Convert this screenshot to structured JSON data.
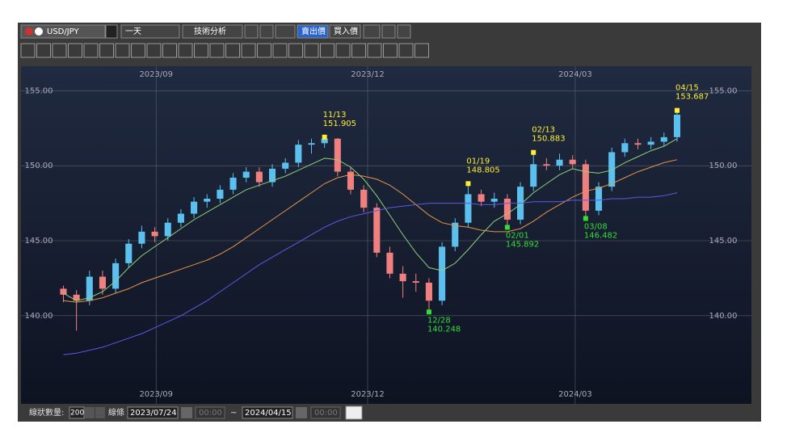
{
  "ui": {
    "symbol": "USD/JPY",
    "period": "一天",
    "analysis": "技術分析",
    "sell": "賣出價",
    "buy": "買入價",
    "count_label": "線狀數量:",
    "count": "200",
    "line_label": "線條",
    "from_date": "2023/07/24",
    "from_time": "00:00",
    "tilde": "~",
    "to_date": "2024/04/15",
    "to_time": "00:00"
  },
  "chart_data": {
    "type": "candlestick",
    "categories": [
      null,
      null,
      null,
      null,
      null,
      null,
      null,
      null,
      null,
      null,
      null,
      null,
      null,
      null,
      null,
      null,
      null,
      null,
      null,
      null,
      null,
      null,
      null,
      null,
      null,
      null,
      null,
      null,
      null,
      null,
      null,
      null,
      null,
      null,
      null,
      null,
      null,
      null,
      null,
      null,
      null,
      null,
      null,
      null,
      null,
      null,
      null,
      null
    ],
    "open": [
      141.8,
      141.4,
      141.0,
      142.6,
      141.8,
      143.5,
      144.8,
      145.6,
      145.3,
      146.2,
      146.8,
      147.6,
      147.8,
      148.4,
      149.2,
      149.6,
      148.9,
      149.8,
      150.2,
      151.4,
      151.5,
      151.8,
      149.6,
      148.4,
      147.2,
      144.2,
      142.8,
      142.3,
      142.2,
      141.0,
      144.6,
      146.2,
      148.1,
      147.6,
      147.8,
      146.4,
      148.6,
      150.1,
      150.0,
      150.4,
      150.1,
      147.0,
      148.6,
      150.9,
      151.5,
      151.4,
      151.6,
      151.9
    ],
    "high": [
      142.0,
      141.7,
      143.0,
      143.0,
      143.8,
      145.1,
      146.0,
      145.9,
      146.5,
      147.1,
      147.9,
      148.1,
      148.7,
      149.5,
      149.9,
      149.9,
      150.1,
      150.5,
      151.7,
      151.8,
      151.905,
      151.85,
      149.9,
      148.7,
      147.5,
      144.6,
      143.3,
      142.8,
      142.5,
      144.9,
      146.5,
      148.805,
      148.4,
      148.2,
      148.1,
      148.9,
      150.883,
      150.5,
      150.8,
      150.7,
      150.4,
      148.9,
      151.2,
      151.8,
      151.8,
      151.9,
      152.2,
      153.687
    ],
    "low": [
      140.9,
      139.0,
      140.7,
      141.4,
      141.5,
      143.2,
      144.5,
      144.9,
      145.0,
      145.9,
      146.5,
      147.2,
      147.5,
      148.1,
      148.9,
      148.6,
      148.6,
      149.5,
      149.9,
      150.8,
      151.2,
      149.3,
      148.1,
      146.9,
      143.9,
      142.5,
      141.2,
      141.6,
      140.248,
      140.7,
      144.3,
      145.9,
      147.3,
      147.2,
      145.892,
      146.1,
      148.3,
      149.7,
      149.7,
      149.8,
      146.482,
      146.7,
      148.3,
      150.6,
      151.1,
      151.1,
      151.3,
      151.6
    ],
    "close": [
      141.4,
      141.0,
      142.6,
      141.8,
      143.5,
      144.8,
      145.6,
      145.3,
      146.2,
      146.8,
      147.6,
      147.8,
      148.4,
      149.2,
      149.6,
      148.9,
      149.8,
      150.2,
      151.4,
      151.5,
      151.8,
      149.6,
      148.4,
      147.2,
      144.2,
      142.8,
      142.3,
      142.2,
      141.0,
      144.6,
      146.2,
      148.1,
      147.6,
      147.8,
      146.4,
      148.6,
      150.1,
      150.0,
      150.4,
      150.1,
      147.0,
      148.6,
      150.9,
      151.5,
      151.4,
      151.6,
      151.9,
      153.4
    ],
    "up_color": "#5cc0ee",
    "down_color": "#f08080",
    "series": [
      {
        "color": "#8fd17a",
        "values": [
          141.5,
          141.0,
          141.2,
          141.6,
          142.3,
          143.2,
          144.0,
          144.6,
          145.2,
          145.8,
          146.4,
          146.9,
          147.4,
          147.9,
          148.4,
          148.7,
          149.0,
          149.3,
          149.7,
          150.1,
          150.5,
          150.4,
          149.9,
          149.1,
          148.0,
          146.7,
          145.4,
          144.2,
          143.2,
          143.0,
          143.5,
          144.4,
          145.4,
          146.3,
          146.8,
          147.4,
          148.2,
          148.8,
          149.4,
          149.8,
          149.6,
          149.5,
          149.7,
          150.2,
          150.6,
          151.0,
          151.3,
          151.8
        ]
      },
      {
        "color": "#e8944a",
        "values": [
          141.0,
          140.9,
          141.0,
          141.2,
          141.5,
          141.8,
          142.2,
          142.5,
          142.8,
          143.1,
          143.4,
          143.7,
          144.1,
          144.6,
          145.2,
          145.8,
          146.4,
          147.0,
          147.6,
          148.2,
          148.8,
          149.2,
          149.4,
          149.3,
          149.1,
          148.7,
          148.1,
          147.4,
          146.7,
          146.2,
          146.0,
          145.9,
          145.7,
          145.6,
          145.6,
          145.8,
          146.3,
          146.9,
          147.4,
          147.9,
          148.3,
          148.5,
          148.8,
          149.2,
          149.6,
          149.9,
          150.2,
          150.4
        ]
      },
      {
        "color": "#5a5ae6",
        "values": [
          137.4,
          137.5,
          137.7,
          137.9,
          138.2,
          138.5,
          138.8,
          139.2,
          139.6,
          140.0,
          140.5,
          141.0,
          141.6,
          142.2,
          142.8,
          143.4,
          143.9,
          144.4,
          144.9,
          145.4,
          145.9,
          146.3,
          146.6,
          146.8,
          147.0,
          147.2,
          147.3,
          147.4,
          147.5,
          147.5,
          147.5,
          147.5,
          147.4,
          147.4,
          147.5,
          147.5,
          147.6,
          147.6,
          147.6,
          147.7,
          147.7,
          147.7,
          147.8,
          147.8,
          147.9,
          147.9,
          148.0,
          148.2
        ]
      }
    ],
    "annotations": [
      {
        "x": 20,
        "label": "11/13",
        "value": 151.905,
        "value_label": "151.905",
        "color": "#ffee33",
        "position": "above"
      },
      {
        "x": 28,
        "label": "12/28",
        "value": 140.248,
        "value_label": "140.248",
        "color": "#33dd33",
        "position": "below"
      },
      {
        "x": 31,
        "label": "01/19",
        "value": 148.805,
        "value_label": "148.805",
        "color": "#ffee33",
        "position": "above"
      },
      {
        "x": 34,
        "label": "02/01",
        "value": 145.892,
        "value_label": "145.892",
        "color": "#33dd33",
        "position": "below"
      },
      {
        "x": 36,
        "label": "02/13",
        "value": 150.883,
        "value_label": "150.883",
        "color": "#ffee33",
        "position": "above"
      },
      {
        "x": 40,
        "label": "03/08",
        "value": 146.482,
        "value_label": "146.482",
        "color": "#33dd33",
        "position": "below"
      },
      {
        "x": 47,
        "label": "04/15",
        "value": 153.687,
        "value_label": "153.687",
        "color": "#ffee33",
        "position": "above"
      }
    ],
    "xlim": [
      -3,
      49.6
    ],
    "xticks": [
      {
        "value": 7.1,
        "label": "2023/09"
      },
      {
        "value": 23.3,
        "label": "2023/12"
      },
      {
        "value": 39.2,
        "label": "2024/03"
      }
    ],
    "ylim": [
      135.2,
      156.2
    ],
    "yticks": [
      {
        "value": 140,
        "label": "140.00"
      },
      {
        "value": 145,
        "label": "145.00"
      },
      {
        "value": 150,
        "label": "150.00"
      },
      {
        "value": 155,
        "label": "155.00"
      }
    ],
    "grid": true
  }
}
